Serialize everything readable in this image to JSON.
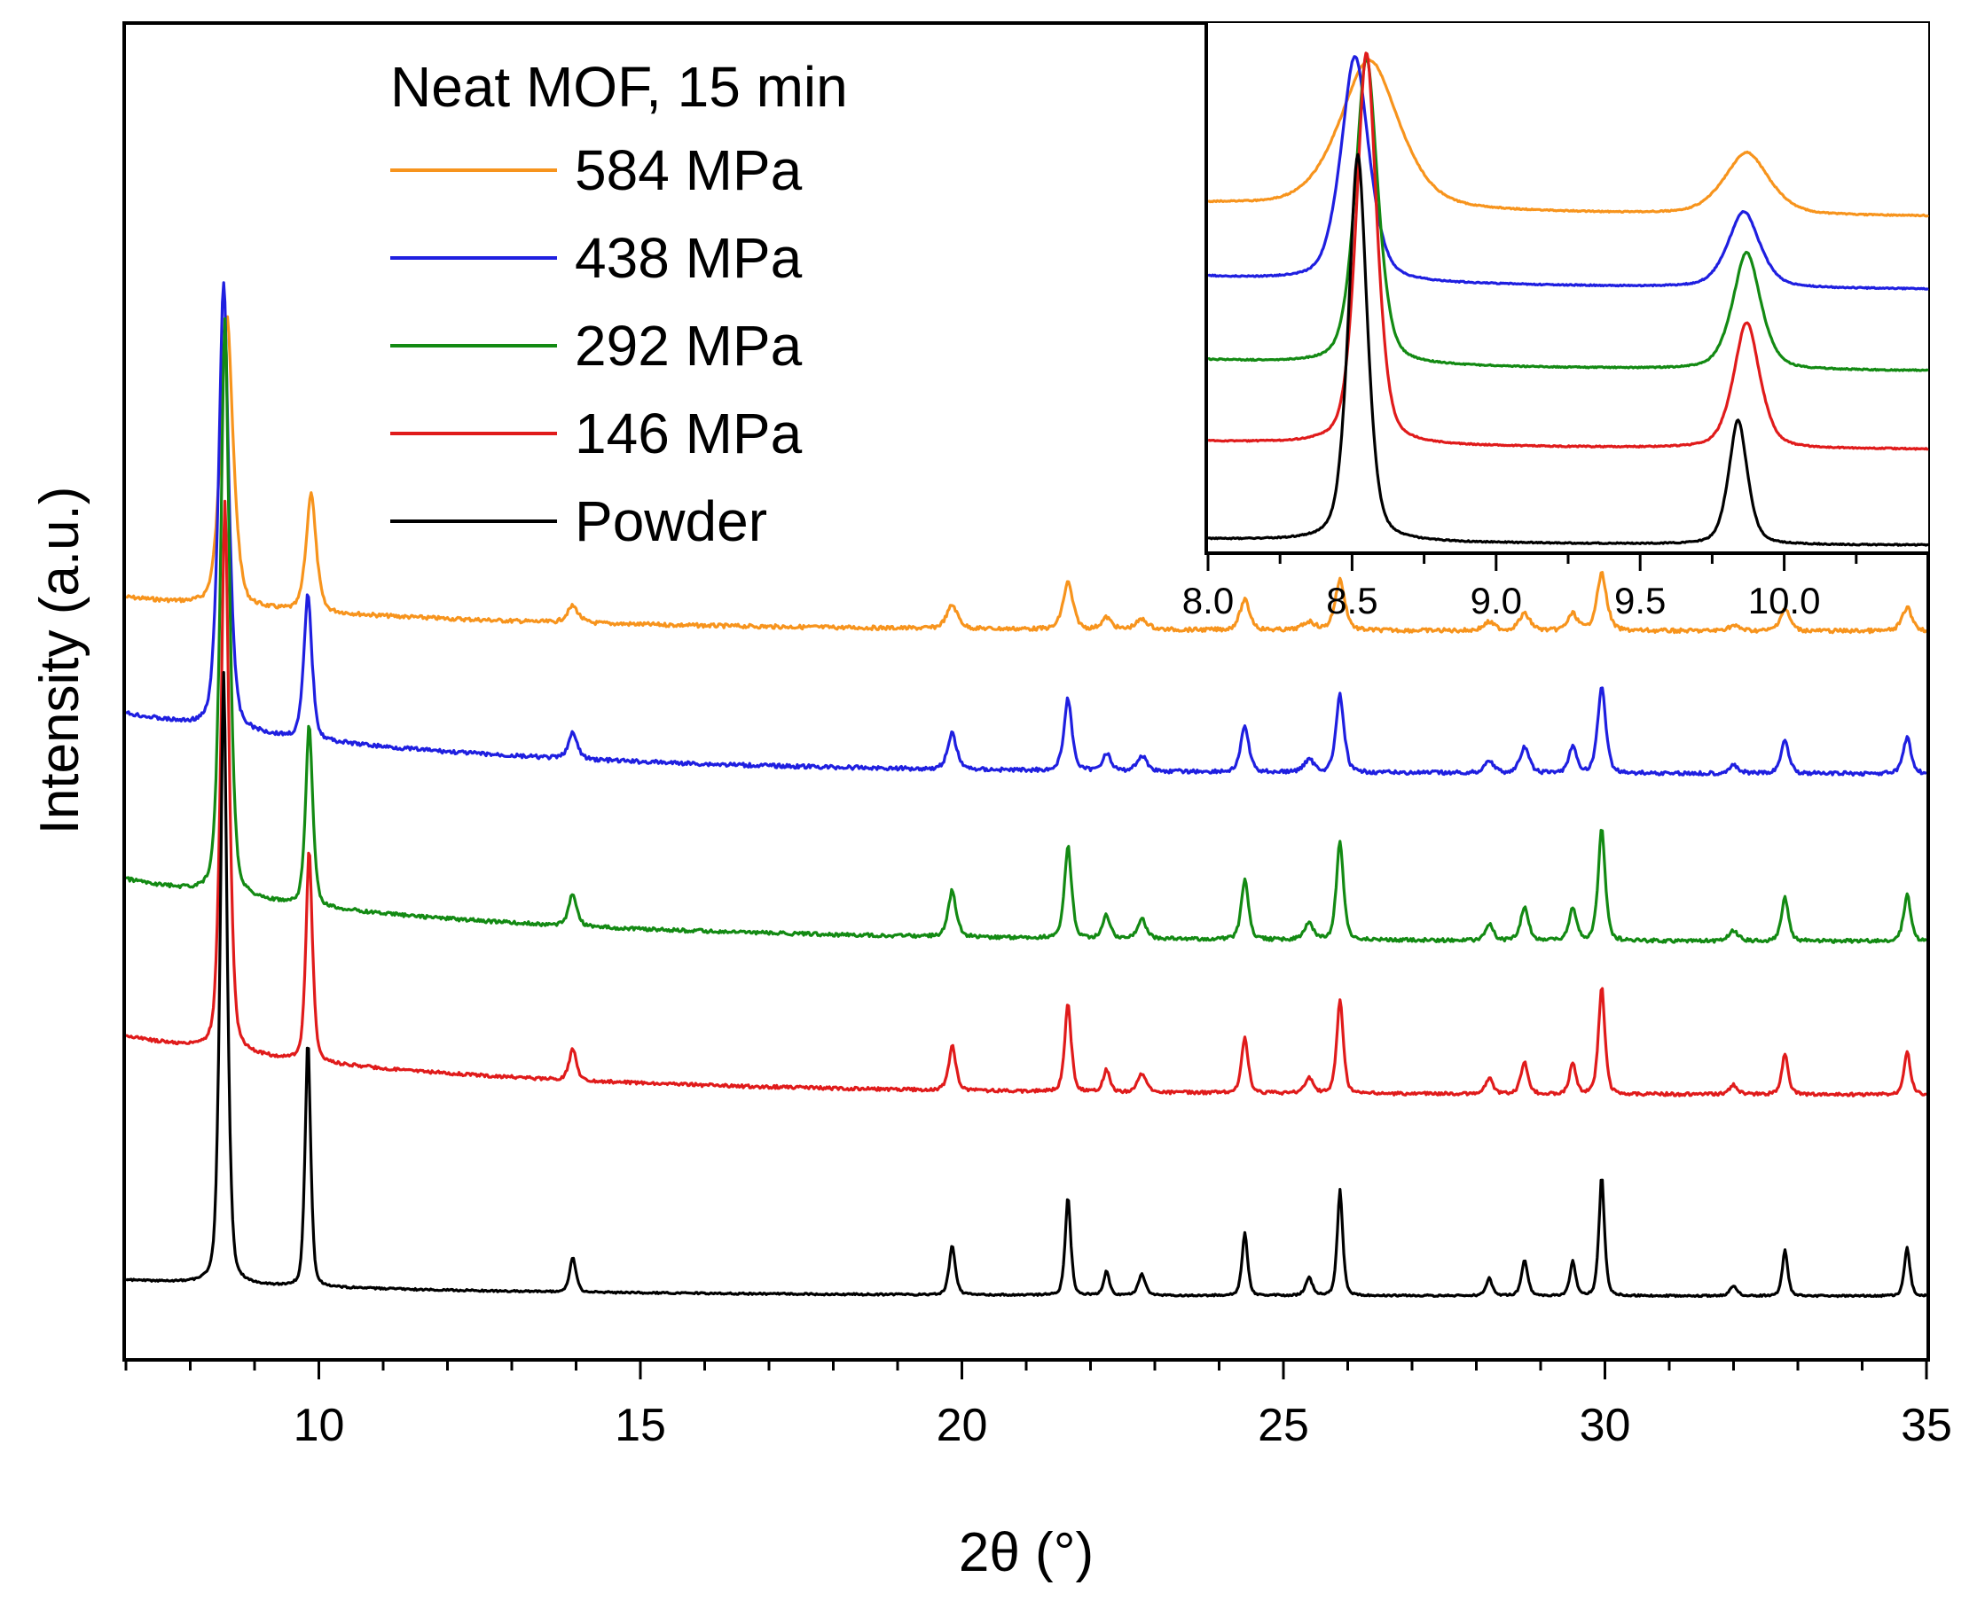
{
  "chart_data": {
    "type": "line",
    "title": "",
    "xlabel": "2θ (°)",
    "ylabel": "Intensity (a.u.)",
    "xlim": [
      7,
      35
    ],
    "xticks": [
      10,
      15,
      20,
      25,
      30,
      35
    ],
    "yticks_shown": false,
    "legend": {
      "position": "top-left",
      "title": "Neat MOF, 15 min",
      "entries": [
        "584 MPa",
        "438 MPa",
        "292 MPa",
        "146 MPa",
        "Powder"
      ]
    },
    "series": [
      {
        "name": "584 MPa",
        "color": "#f7941d",
        "offset": 4.0,
        "peak_shift": 0.05
      },
      {
        "name": "438 MPa",
        "color": "#1f1fe0",
        "offset": 3.0,
        "peak_shift": 0.0
      },
      {
        "name": "292 MPa",
        "color": "#138a13",
        "offset": 2.0,
        "peak_shift": 0.02
      },
      {
        "name": "146 MPa",
        "color": "#e01b1b",
        "offset": 1.0,
        "peak_shift": 0.02
      },
      {
        "name": "Powder",
        "color": "#000000",
        "offset": 0.0,
        "peak_shift": 0.0
      }
    ],
    "peak_positions": [
      8.52,
      9.83,
      13.95,
      19.85,
      21.65,
      22.25,
      22.8,
      24.4,
      25.4,
      25.88,
      28.2,
      28.75,
      29.5,
      29.95,
      32.0,
      32.8,
      34.7
    ],
    "inset": {
      "xlim": [
        8.0,
        10.5
      ],
      "xticks": [
        8.0,
        8.5,
        9.0,
        9.5,
        10.0
      ],
      "tick_labels": [
        "8.0",
        "8.5",
        "9.0",
        "9.5",
        "10.0"
      ],
      "series_order": [
        "584 MPa",
        "438 MPa",
        "292 MPa",
        "146 MPa",
        "Powder"
      ]
    }
  }
}
